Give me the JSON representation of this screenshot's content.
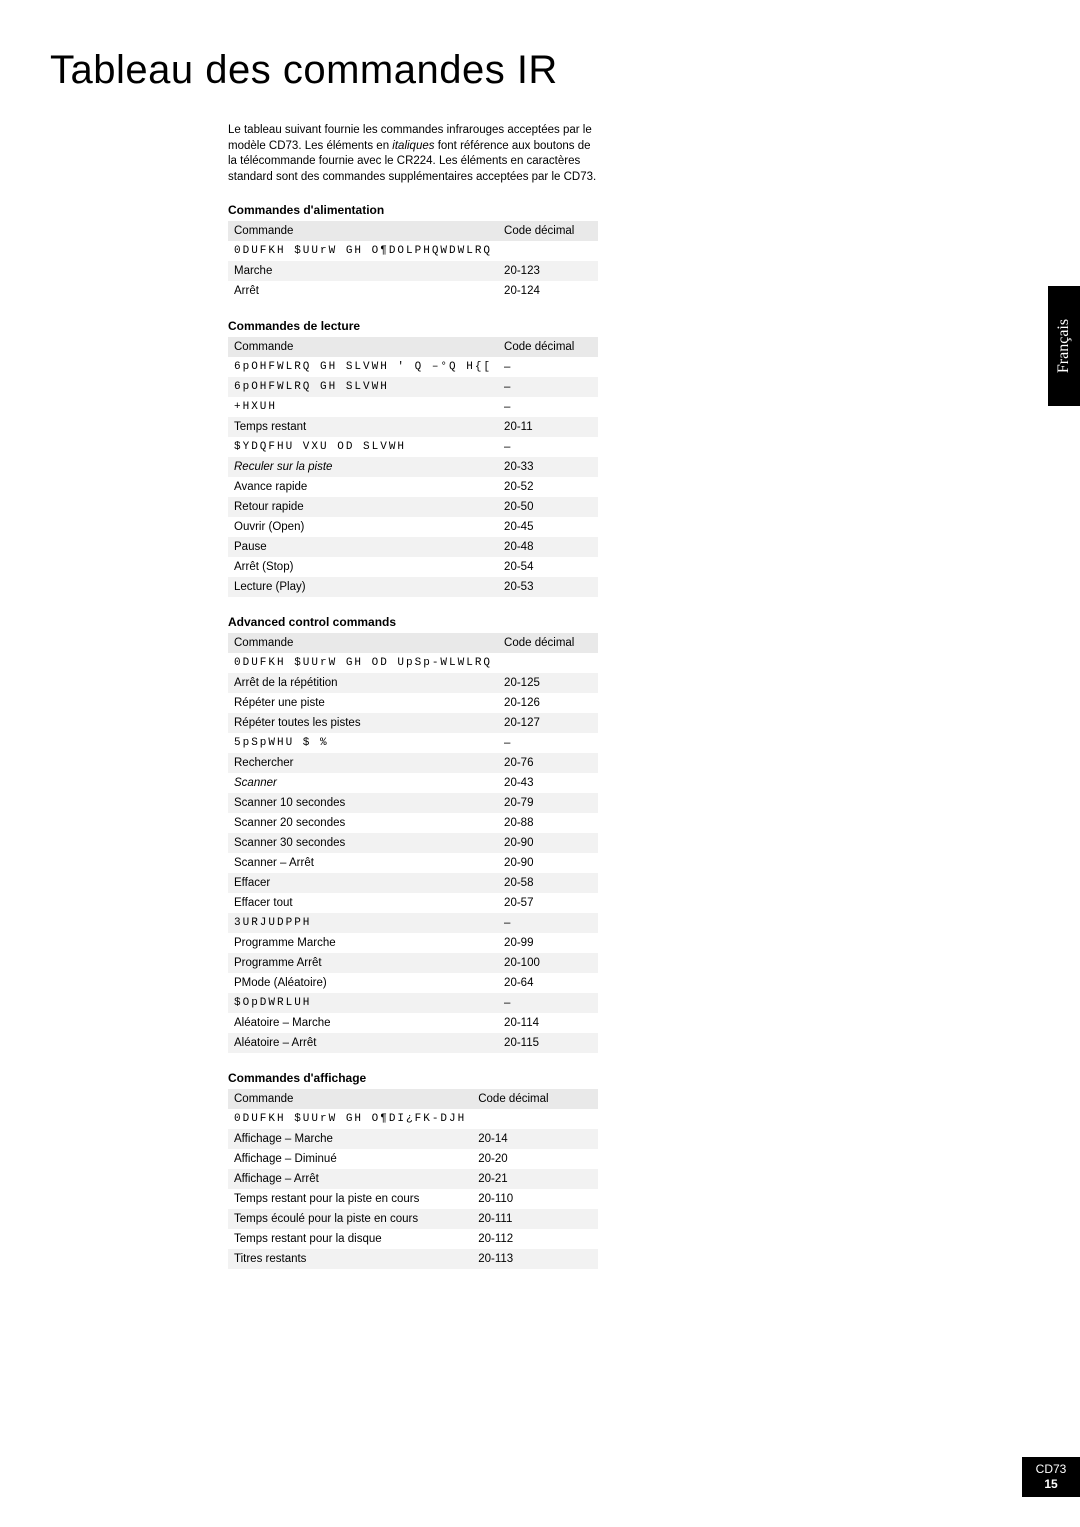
{
  "title": "Tableau des commandes IR",
  "intro_html": "Le tableau suivant fournie les commandes infrarouges acceptées par le modèle CD73. Les éléments en <em>italiques</em> font référence aux boutons de la télécommande fournie avec le CR224. Les éléments en caractères standard sont des commandes supplémentaires acceptées par le CD73.",
  "lang_tab": "Français",
  "model": "CD73",
  "page_number": "15",
  "col_cmd": "Commande",
  "col_code": "Code décimal",
  "sections": [
    {
      "title": "Commandes d'alimentation",
      "rows": [
        {
          "cmd": "0DUFKH $UUrW GH O¶DOLPHQWDWLRQ",
          "code": "",
          "garbled": true,
          "italic": false
        },
        {
          "cmd": "Marche",
          "code": "20-123",
          "garbled": false,
          "italic": false
        },
        {
          "cmd": "Arrêt",
          "code": "20-124",
          "garbled": false,
          "italic": false
        }
      ]
    },
    {
      "title": "Commandes de lecture",
      "rows": [
        {
          "cmd": "6pOHFWLRQ GH SLVWH ' Q –°Q  H{[",
          "code": "–",
          "garbled": true,
          "italic": false
        },
        {
          "cmd": "6pOHFWLRQ GH SLVWH",
          "code": "–",
          "garbled": true,
          "italic": false
        },
        {
          "cmd": "+HXUH",
          "code": "–",
          "garbled": true,
          "italic": false
        },
        {
          "cmd": "Temps restant",
          "code": "20-11",
          "garbled": false,
          "italic": false
        },
        {
          "cmd": "$YDQFHU VXU OD SLVWH",
          "code": "–",
          "garbled": true,
          "italic": false
        },
        {
          "cmd": "Reculer sur la piste",
          "code": "20-33",
          "garbled": false,
          "italic": true
        },
        {
          "cmd": "Avance rapide",
          "code": "20-52",
          "garbled": false,
          "italic": false
        },
        {
          "cmd": "Retour rapide",
          "code": "20-50",
          "garbled": false,
          "italic": false
        },
        {
          "cmd": "Ouvrir (Open)",
          "code": "20-45",
          "garbled": false,
          "italic": false
        },
        {
          "cmd": "Pause",
          "code": "20-48",
          "garbled": false,
          "italic": false
        },
        {
          "cmd": "Arrêt (Stop)",
          "code": "20-54",
          "garbled": false,
          "italic": false
        },
        {
          "cmd": "Lecture (Play)",
          "code": "20-53",
          "garbled": false,
          "italic": false
        }
      ]
    },
    {
      "title": "Advanced control commands",
      "rows": [
        {
          "cmd": "0DUFKH $UUrW GH OD UpSp-WLWLRQ",
          "code": "",
          "garbled": true,
          "italic": false
        },
        {
          "cmd": "Arrêt de la répétition",
          "code": "20-125",
          "garbled": false,
          "italic": false
        },
        {
          "cmd": "Répéter une piste",
          "code": "20-126",
          "garbled": false,
          "italic": false
        },
        {
          "cmd": "Répéter toutes les pistes",
          "code": "20-127",
          "garbled": false,
          "italic": false
        },
        {
          "cmd": "5pSpWHU $ %",
          "code": "–",
          "garbled": true,
          "italic": false
        },
        {
          "cmd": "Rechercher",
          "code": "20-76",
          "garbled": false,
          "italic": false
        },
        {
          "cmd": "Scanner",
          "code": "20-43",
          "garbled": false,
          "italic": true
        },
        {
          "cmd": "Scanner 10 secondes",
          "code": "20-79",
          "garbled": false,
          "italic": false
        },
        {
          "cmd": "Scanner 20 secondes",
          "code": "20-88",
          "garbled": false,
          "italic": false
        },
        {
          "cmd": "Scanner 30 secondes",
          "code": "20-90",
          "garbled": false,
          "italic": false
        },
        {
          "cmd": "Scanner – Arrêt",
          "code": "20-90",
          "garbled": false,
          "italic": false
        },
        {
          "cmd": "Effacer",
          "code": "20-58",
          "garbled": false,
          "italic": false
        },
        {
          "cmd": "Effacer tout",
          "code": "20-57",
          "garbled": false,
          "italic": false
        },
        {
          "cmd": "3URJUDPPH",
          "code": "–",
          "garbled": true,
          "italic": false
        },
        {
          "cmd": "Programme Marche",
          "code": "20-99",
          "garbled": false,
          "italic": false
        },
        {
          "cmd": "Programme Arrêt",
          "code": "20-100",
          "garbled": false,
          "italic": false
        },
        {
          "cmd": "PMode (Aléatoire)",
          "code": "20-64",
          "garbled": false,
          "italic": false
        },
        {
          "cmd": "$OpDWRLUH",
          "code": "–",
          "garbled": true,
          "italic": false
        },
        {
          "cmd": "Aléatoire – Marche",
          "code": "20-114",
          "garbled": false,
          "italic": false
        },
        {
          "cmd": "Aléatoire – Arrêt",
          "code": "20-115",
          "garbled": false,
          "italic": false
        }
      ]
    },
    {
      "title": "Commandes d'affichage",
      "rows": [
        {
          "cmd": "0DUFKH $UUrW GH O¶DI¿FK-DJH",
          "code": "",
          "garbled": true,
          "italic": false
        },
        {
          "cmd": "Affichage – Marche",
          "code": "20-14",
          "garbled": false,
          "italic": false
        },
        {
          "cmd": "Affichage – Diminué",
          "code": "20-20",
          "garbled": false,
          "italic": false
        },
        {
          "cmd": "Affichage – Arrêt",
          "code": "20-21",
          "garbled": false,
          "italic": false
        },
        {
          "cmd": "Temps restant pour la piste en cours",
          "code": "20-110",
          "garbled": false,
          "italic": false
        },
        {
          "cmd": "Temps écoulé pour la piste en cours",
          "code": "20-111",
          "garbled": false,
          "italic": false
        },
        {
          "cmd": "Temps restant pour la disque",
          "code": "20-112",
          "garbled": false,
          "italic": false
        },
        {
          "cmd": "Titres restants",
          "code": "20-113",
          "garbled": false,
          "italic": false
        }
      ]
    }
  ]
}
